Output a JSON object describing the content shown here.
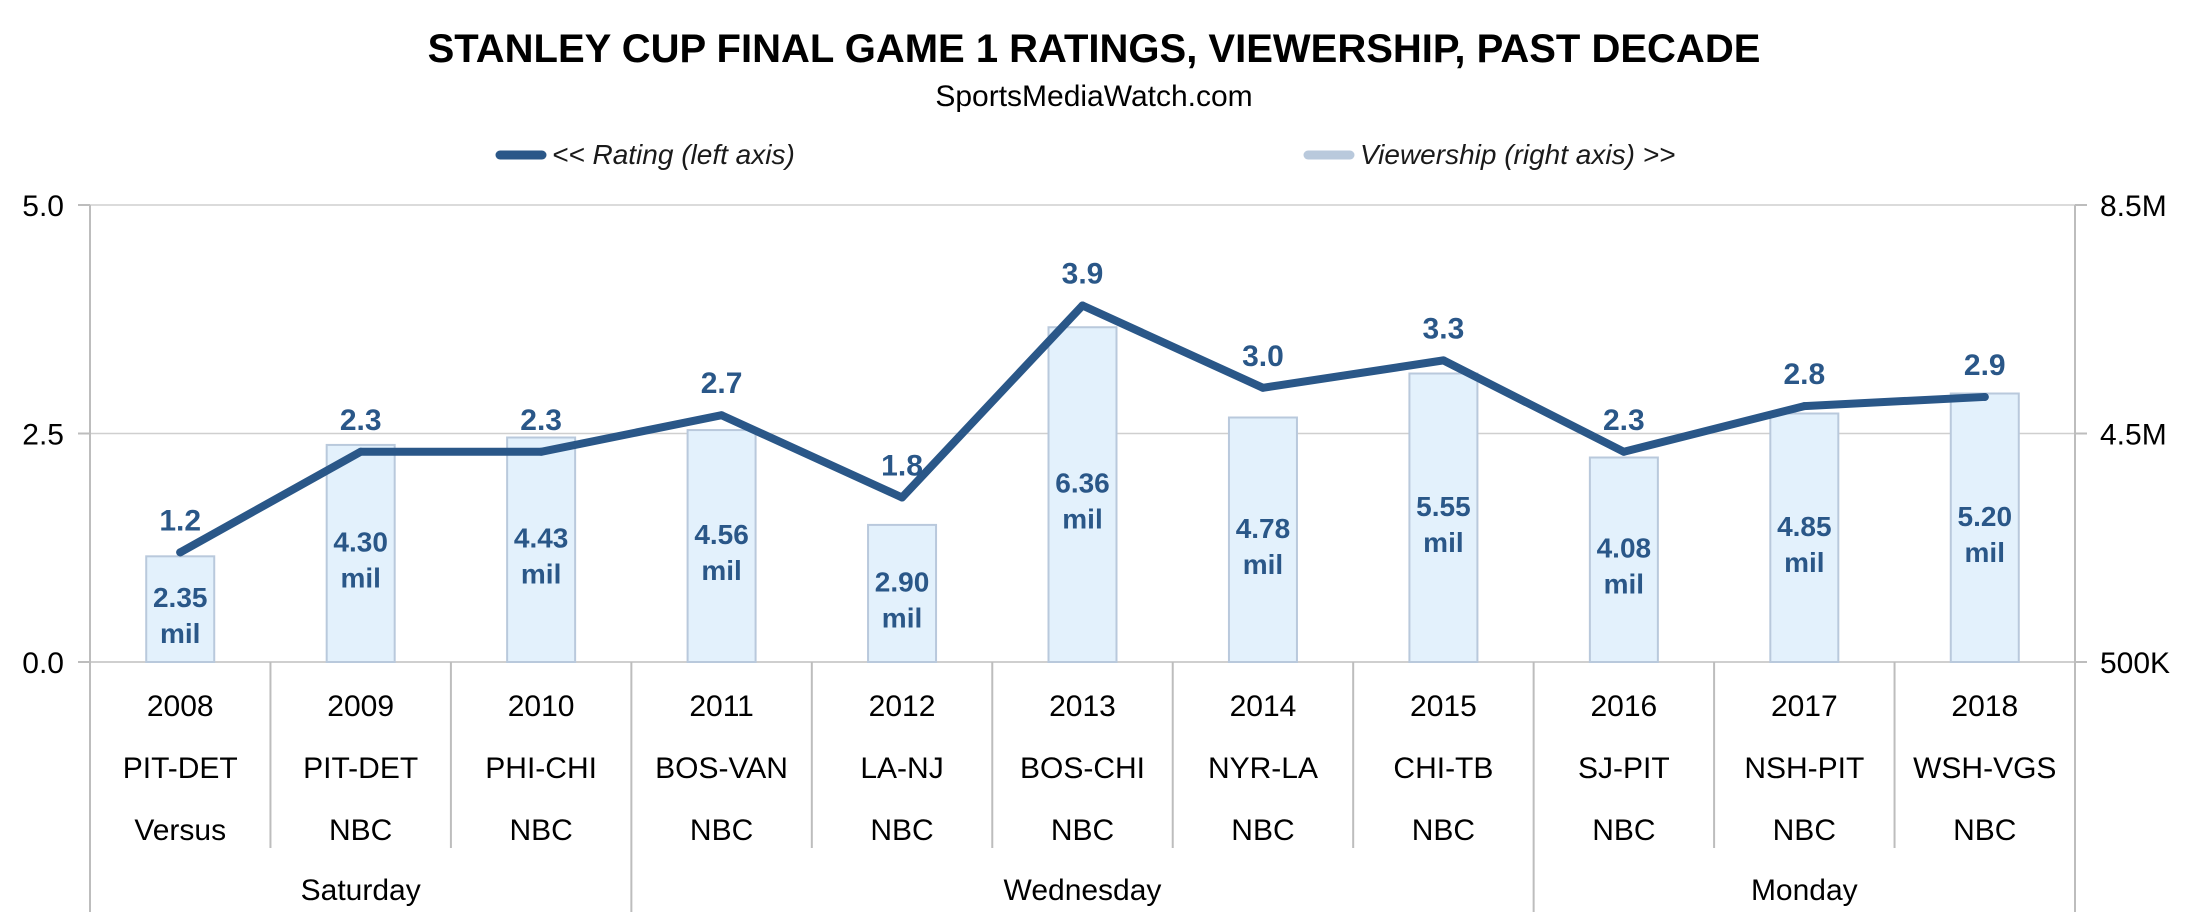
{
  "chart_data": {
    "type": "bar",
    "title": "STANLEY CUP FINAL GAME 1 RATINGS, VIEWERSHIP, PAST DECADE",
    "subtitle": "SportsMediaWatch.com",
    "legend": [
      {
        "name": "<< Rating (left axis)",
        "color": "#2a5788",
        "kind": "line"
      },
      {
        "name": "Viewership (right axis) >>",
        "color": "#b9c9dc",
        "kind": "bar"
      }
    ],
    "legend_placement": "top",
    "left_axis": {
      "ticks": [
        "5.0",
        "2.5",
        "0.0"
      ],
      "range": [
        0,
        5
      ]
    },
    "right_axis": {
      "ticks": [
        "8.5M",
        "4.5M",
        "500K"
      ],
      "range": [
        0.5,
        8.5
      ],
      "unit": "M"
    },
    "grid": true,
    "categories": [
      {
        "year": "2008",
        "matchup": "PIT-DET",
        "network": "Versus"
      },
      {
        "year": "2009",
        "matchup": "PIT-DET",
        "network": "NBC"
      },
      {
        "year": "2010",
        "matchup": "PHI-CHI",
        "network": "NBC"
      },
      {
        "year": "2011",
        "matchup": "BOS-VAN",
        "network": "NBC"
      },
      {
        "year": "2012",
        "matchup": "LA-NJ",
        "network": "NBC"
      },
      {
        "year": "2013",
        "matchup": "BOS-CHI",
        "network": "NBC"
      },
      {
        "year": "2014",
        "matchup": "NYR-LA",
        "network": "NBC"
      },
      {
        "year": "2015",
        "matchup": "CHI-TB",
        "network": "NBC"
      },
      {
        "year": "2016",
        "matchup": "SJ-PIT",
        "network": "NBC"
      },
      {
        "year": "2017",
        "matchup": "NSH-PIT",
        "network": "NBC"
      },
      {
        "year": "2018",
        "matchup": "WSH-VGS",
        "network": "NBC"
      }
    ],
    "day_groups": [
      {
        "label": "Saturday",
        "start": 0,
        "end": 2
      },
      {
        "label": "Wednesday",
        "start": 3,
        "end": 7
      },
      {
        "label": "Monday",
        "start": 8,
        "end": 10
      }
    ],
    "series": [
      {
        "name": "<< Rating (left axis)",
        "axis": "left",
        "type": "line",
        "values": [
          1.2,
          2.3,
          2.3,
          2.7,
          1.8,
          3.9,
          3.0,
          3.3,
          2.3,
          2.8,
          2.9
        ],
        "labels": [
          "1.2",
          "2.3",
          "2.3",
          "2.7",
          "1.8",
          "3.9",
          "3.0",
          "3.3",
          "2.3",
          "2.8",
          "2.9"
        ]
      },
      {
        "name": "Viewership (right axis) >>",
        "axis": "right",
        "type": "bar",
        "values": [
          2.35,
          4.3,
          4.43,
          4.56,
          2.9,
          6.36,
          4.78,
          5.55,
          4.08,
          4.85,
          5.2
        ],
        "labels": [
          "2.35",
          "4.30",
          "4.43",
          "4.56",
          "2.90",
          "6.36",
          "4.78",
          "5.55",
          "4.08",
          "4.85",
          "5.20"
        ],
        "unit_label": "mil"
      }
    ],
    "colors": {
      "line": "#2a5788",
      "bar_fill": "#e3f1fc",
      "bar_stroke": "#b9c9dc",
      "grid": "#cfcfcf",
      "axis": "#bdbdbd"
    }
  }
}
